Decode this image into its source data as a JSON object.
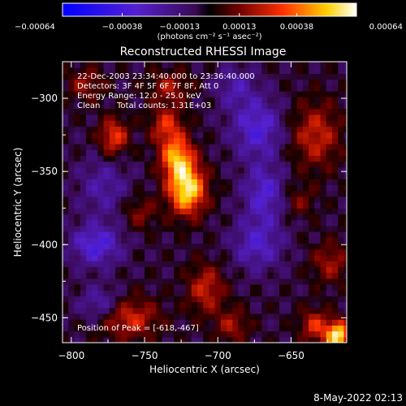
{
  "chart_data": {
    "type": "heatmap",
    "title": "Reconstructed RHESSI Image",
    "xlabel": "Heliocentric X (arcsec)",
    "ylabel": "Heliocentric Y (arcsec)",
    "xlim": [
      -806,
      -612
    ],
    "ylim": [
      -467,
      -275
    ],
    "x_ticks": [
      "-800",
      "-750",
      "-700",
      "-650"
    ],
    "y_ticks": [
      "-300",
      "-350",
      "-400",
      "-450"
    ],
    "colorbar": {
      "ticks": [
        "-0.00064",
        "-0.00038",
        "-0.00013",
        "0.00013",
        "0.00038",
        "0.00064"
      ],
      "range": [
        -0.00064,
        0.00064
      ],
      "units": "(photons cm⁻² s⁻¹ asec⁻²)"
    },
    "annotations": [
      "22-Dec-2003 23:34:40.000 to 23:36:40.000",
      "Detectors: 3F 4F 5F 6F 7F 8F, Att 0",
      "Energy Range: 12.0 - 25.0 keV",
      "Clean",
      "Total counts: 1.31E+03"
    ],
    "peak_text": "Position of Peak = [-618,-467]",
    "footer_date": "8-May-2022 02:13",
    "colormap": "blue-purple-red-yellow-white",
    "sources": [
      {
        "x": -721,
        "y": -362,
        "value": 0.00062,
        "sx": 9,
        "sy": 12
      },
      {
        "x": -728,
        "y": -340,
        "value": 0.00048,
        "sx": 8,
        "sy": 10
      },
      {
        "x": -735,
        "y": -318,
        "value": 0.0003,
        "sx": 8,
        "sy": 9
      },
      {
        "x": -733,
        "y": -292,
        "value": 0.00022,
        "sx": 10,
        "sy": 8
      },
      {
        "x": -771,
        "y": -326,
        "value": 0.00035,
        "sx": 7,
        "sy": 9
      },
      {
        "x": -790,
        "y": -290,
        "value": 0.0002,
        "sx": 9,
        "sy": 8
      },
      {
        "x": -753,
        "y": -378,
        "value": 0.00018,
        "sx": 8,
        "sy": 8
      },
      {
        "x": -760,
        "y": -450,
        "value": 0.0003,
        "sx": 14,
        "sy": 10
      },
      {
        "x": -708,
        "y": -430,
        "value": 0.00028,
        "sx": 9,
        "sy": 12
      },
      {
        "x": -690,
        "y": -455,
        "value": 0.00022,
        "sx": 8,
        "sy": 8
      },
      {
        "x": -633,
        "y": -325,
        "value": 0.00028,
        "sx": 12,
        "sy": 16
      },
      {
        "x": -623,
        "y": -412,
        "value": 0.00022,
        "sx": 9,
        "sy": 10
      },
      {
        "x": -618,
        "y": -462,
        "value": 0.00064,
        "sx": 6,
        "sy": 7
      },
      {
        "x": -634,
        "y": -455,
        "value": 0.0003,
        "sx": 7,
        "sy": 8
      },
      {
        "x": -645,
        "y": -370,
        "value": 0.00016,
        "sx": 8,
        "sy": 8
      },
      {
        "x": -778,
        "y": -360,
        "value": -0.00018,
        "sx": 12,
        "sy": 14
      },
      {
        "x": -783,
        "y": -400,
        "value": -0.00032,
        "sx": 12,
        "sy": 10
      },
      {
        "x": -673,
        "y": -320,
        "value": -0.0003,
        "sx": 12,
        "sy": 14
      },
      {
        "x": -668,
        "y": -365,
        "value": -0.00028,
        "sx": 10,
        "sy": 14
      },
      {
        "x": -673,
        "y": -400,
        "value": -0.00025,
        "sx": 12,
        "sy": 12
      },
      {
        "x": -688,
        "y": -292,
        "value": -0.00018,
        "sx": 10,
        "sy": 10
      },
      {
        "x": -780,
        "y": -440,
        "value": -0.00022,
        "sx": 10,
        "sy": 8
      }
    ]
  }
}
